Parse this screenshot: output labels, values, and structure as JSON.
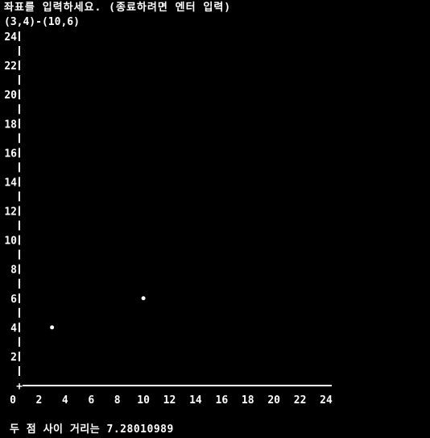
{
  "terminal": {
    "prompt": "좌표를 입력하세요. (종료하려면 엔터 입력)",
    "input": "(3,4)-(10,6)",
    "result": "두 점 사이 거리는 7.28010989"
  },
  "colors": {
    "background": "#000000",
    "text": "#ffffff"
  },
  "chart_data": {
    "type": "scatter",
    "title": "",
    "xlabel": "",
    "ylabel": "",
    "xlim": [
      0,
      24
    ],
    "ylim": [
      0,
      24
    ],
    "x_ticks": [
      "0",
      "2",
      "4",
      "6",
      "8",
      "10",
      "12",
      "14",
      "16",
      "18",
      "20",
      "22",
      "24"
    ],
    "y_ticks": [
      "2",
      "4",
      "6",
      "8",
      "10",
      "12",
      "14",
      "16",
      "18",
      "20",
      "22",
      "24"
    ],
    "points": [
      {
        "x": 3,
        "y": 4
      },
      {
        "x": 10,
        "y": 6
      }
    ],
    "origin_marker": "+",
    "grid": false
  }
}
